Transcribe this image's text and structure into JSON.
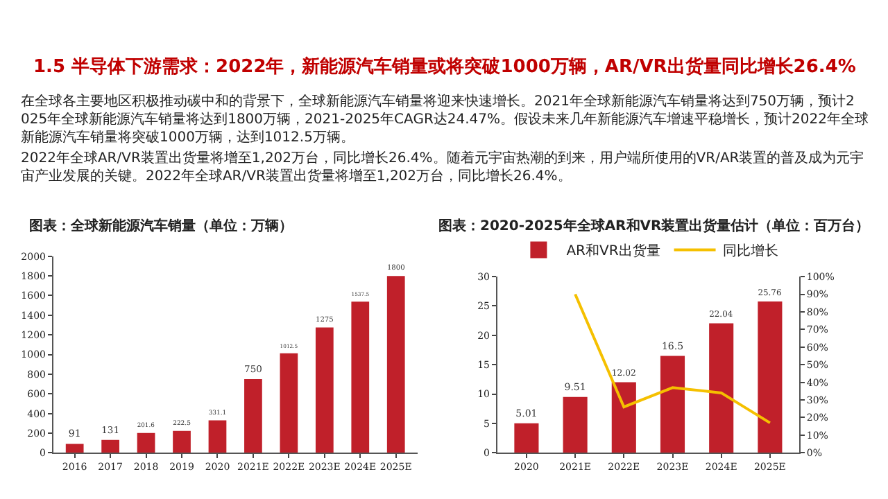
{
  "chart_data": [
    {
      "type": "bar",
      "title": "图表：全球新能源汽车销量（单位：万辆）",
      "annotations": [
        "1.5 半导体下游需求：2022年，新能源汽车销量或将突破1000万辆，AR/VR出货量同比增长26.4%",
        "在全球各主要地区积极推动碳中和的背景下，全球新能源汽车销量将迎来快速增长。2021年全球新能源汽车销量将达到750万辆，预计2025年全球新能源汽车销量将达到1800万辆，2021-2025年CAGR达24.47%。假设未来几年新能源汽车增速平稳增长，预计2022年全球新能源汽车销量将突破1000万辆，达到1012.5万辆。",
        "2022年全球AR/VR装置出货量将增至1,202万台，同比增长26.4%。随着元宇宙热潮的到来，用户端所使用的VR/AR装置的普及成为元宇宙产业发展的关键。2022年全球AR/VR装置出货量将增至1,202万台，同比增长26.4%。"
      ],
      "categories": [
        "2016",
        "2017",
        "2018",
        "2019",
        "2020",
        "2021E",
        "2022E",
        "2023E",
        "2024E",
        "2025E"
      ],
      "values": [
        91,
        131,
        201.6,
        222.5,
        331.1,
        750,
        1012.5,
        1275,
        1537.5,
        1800
      ],
      "color": "#c0202a",
      "data_labels": true,
      "ylim": [
        0,
        2000
      ],
      "yticks": [
        0,
        200,
        400,
        600,
        800,
        1000,
        1200,
        1400,
        1600,
        1800,
        2000
      ],
      "grid": false,
      "legend": false
    },
    {
      "type": "bar",
      "title": "图表：2020-2025年全球AR和VR装置出货量估计（单位：百万台）",
      "categories": [
        "2020",
        "2021E",
        "2022E",
        "2023E",
        "2024E",
        "2025E"
      ],
      "series": [
        {
          "name": "AR和VR出货量",
          "type": "bar",
          "color": "#c0202a",
          "values": [
            5.01,
            9.51,
            12.02,
            16.5,
            22.04,
            25.76
          ],
          "value_labels": [
            "5.01",
            "9.51",
            "12.02",
            "16.5",
            "22.04",
            "25.76"
          ]
        },
        {
          "name": "同比增长",
          "type": "line",
          "axis": "y2",
          "color": "#f5c000",
          "values": [
            null,
            90,
            26,
            37,
            34,
            17
          ]
        }
      ],
      "ylim": [
        0,
        30
      ],
      "yticks": [
        0,
        5,
        10,
        15,
        20,
        25,
        30
      ],
      "y2lim": [
        0,
        100
      ],
      "y2ticks": [
        {
          "value": 0,
          "label": "0%"
        },
        {
          "value": 10,
          "label": "10%"
        },
        {
          "value": 20,
          "label": "20%"
        },
        {
          "value": 30,
          "label": "30%"
        },
        {
          "value": 40,
          "label": "40%"
        },
        {
          "value": 50,
          "label": "50%"
        },
        {
          "value": 60,
          "label": "60%"
        },
        {
          "value": 70,
          "label": "70%"
        },
        {
          "value": 80,
          "label": "80%"
        },
        {
          "value": 90,
          "label": "90%"
        },
        {
          "value": 100,
          "label": "100%"
        }
      ],
      "grid": false,
      "legend": "top",
      "marker": "none",
      "line_style": "solid"
    }
  ]
}
